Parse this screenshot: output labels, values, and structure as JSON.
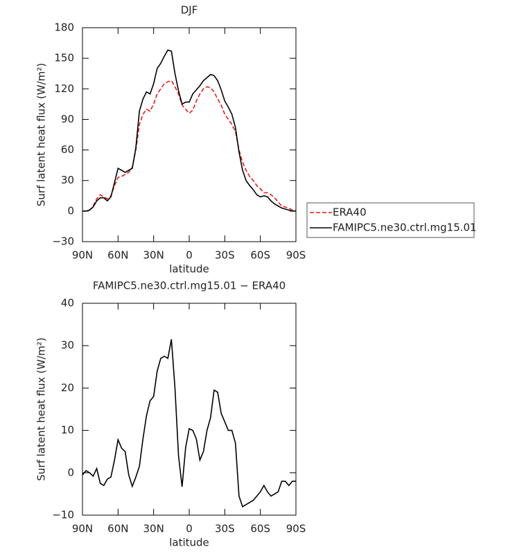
{
  "chart_data": [
    {
      "type": "line",
      "title": "DJF",
      "xlabel": "latitude",
      "ylabel": "Surf latent heat flux (W/m²)",
      "x": [
        90,
        87,
        84,
        81,
        78,
        75,
        72,
        69,
        66,
        63,
        60,
        57,
        54,
        51,
        48,
        45,
        42,
        39,
        36,
        33,
        30,
        27,
        24,
        21,
        18,
        15,
        12,
        9,
        6,
        3,
        0,
        -3,
        -6,
        -9,
        -12,
        -15,
        -18,
        -21,
        -24,
        -27,
        -30,
        -33,
        -36,
        -39,
        -42,
        -45,
        -48,
        -51,
        -54,
        -57,
        -60,
        -63,
        -66,
        -69,
        -72,
        -75,
        -78,
        -81,
        -84,
        -87,
        -90
      ],
      "series": [
        {
          "name": "ERA40",
          "color": "#e41a1c",
          "dashed": true,
          "values": [
            0,
            0,
            1,
            5,
            12,
            16,
            14,
            12,
            15,
            25,
            33,
            34,
            36,
            38,
            43,
            60,
            85,
            95,
            100,
            98,
            105,
            115,
            120,
            125,
            127,
            128,
            122,
            115,
            104,
            100,
            96,
            99,
            108,
            115,
            120,
            122,
            121,
            117,
            110,
            104,
            95,
            90,
            85,
            78,
            60,
            48,
            40,
            34,
            30,
            25,
            22,
            18,
            18,
            16,
            13,
            9,
            5,
            4,
            3,
            1,
            0
          ]
        },
        {
          "name": "FAMIPC5.ne30.ctrl.mg15.01",
          "color": "#000000",
          "dashed": false,
          "values": [
            0,
            0,
            1,
            4,
            10,
            13,
            13,
            10,
            14,
            28,
            42,
            40,
            38,
            40,
            42,
            62,
            98,
            110,
            117,
            115,
            125,
            140,
            145,
            152,
            158,
            157,
            135,
            118,
            105,
            107,
            107,
            115,
            119,
            123,
            128,
            131,
            134,
            133,
            128,
            119,
            108,
            102,
            95,
            82,
            58,
            40,
            30,
            25,
            21,
            16,
            14,
            15,
            14,
            10,
            7,
            5,
            3,
            2,
            1,
            0,
            0
          ]
        }
      ],
      "xlim": [
        90,
        -90
      ],
      "xticks": [
        {
          "value": 90,
          "label": "90N"
        },
        {
          "value": 60,
          "label": "60N"
        },
        {
          "value": 30,
          "label": "30N"
        },
        0,
        {
          "value": -30,
          "label": "30S"
        },
        {
          "value": -60,
          "label": "60S"
        },
        {
          "value": -90,
          "label": "90S"
        }
      ],
      "ylim": [
        -30,
        180
      ],
      "yticks": [
        {
          "value": -30,
          "label": "−30"
        },
        0,
        30,
        60,
        90,
        120,
        150,
        180
      ],
      "legend": "right"
    },
    {
      "type": "line",
      "title": "FAMIPC5.ne30.ctrl.mg15.01 − ERA40",
      "xlabel": "latitude",
      "ylabel": "Surf latent heat flux (W/m²)",
      "x": [
        90,
        87,
        84,
        81,
        78,
        75,
        72,
        69,
        66,
        63,
        60,
        57,
        54,
        51,
        48,
        45,
        42,
        39,
        36,
        33,
        30,
        27,
        24,
        21,
        18,
        15,
        12,
        9,
        6,
        3,
        0,
        -3,
        -6,
        -9,
        -12,
        -15,
        -18,
        -21,
        -24,
        -27,
        -30,
        -33,
        -36,
        -39,
        -42,
        -45,
        -48,
        -51,
        -54,
        -57,
        -60,
        -63,
        -66,
        -69,
        -72,
        -75,
        -78,
        -81,
        -84,
        -87,
        -90
      ],
      "series": [
        {
          "color": "#000000",
          "dashed": false,
          "values": [
            -0.5,
            0.5,
            0,
            -0.8,
            1,
            -2.5,
            -3,
            -1.5,
            -1,
            3,
            7.8,
            5.8,
            5,
            -0.5,
            -3.2,
            -1,
            1.5,
            8,
            13.5,
            17,
            18,
            24,
            27,
            27.5,
            27,
            31.5,
            20,
            4,
            -3.3,
            6,
            10.4,
            10,
            8,
            3,
            5,
            10,
            13,
            19.5,
            19,
            14,
            12,
            10,
            10,
            7,
            -5.5,
            -8,
            -7.5,
            -7,
            -6.5,
            -5.5,
            -4.5,
            -3,
            -4.5,
            -5.5,
            -5,
            -4.5,
            -2,
            -2,
            -3,
            -2,
            -2
          ]
        }
      ],
      "xlim": [
        90,
        -90
      ],
      "xticks": [
        {
          "value": 90,
          "label": "90N"
        },
        {
          "value": 60,
          "label": "60N"
        },
        {
          "value": 30,
          "label": "30N"
        },
        0,
        {
          "value": -30,
          "label": "30S"
        },
        {
          "value": -60,
          "label": "60S"
        },
        {
          "value": -90,
          "label": "90S"
        }
      ],
      "ylim": [
        -10,
        40
      ],
      "yticks": [
        {
          "value": -10,
          "label": "−10"
        },
        0,
        10,
        20,
        30,
        40
      ]
    }
  ]
}
